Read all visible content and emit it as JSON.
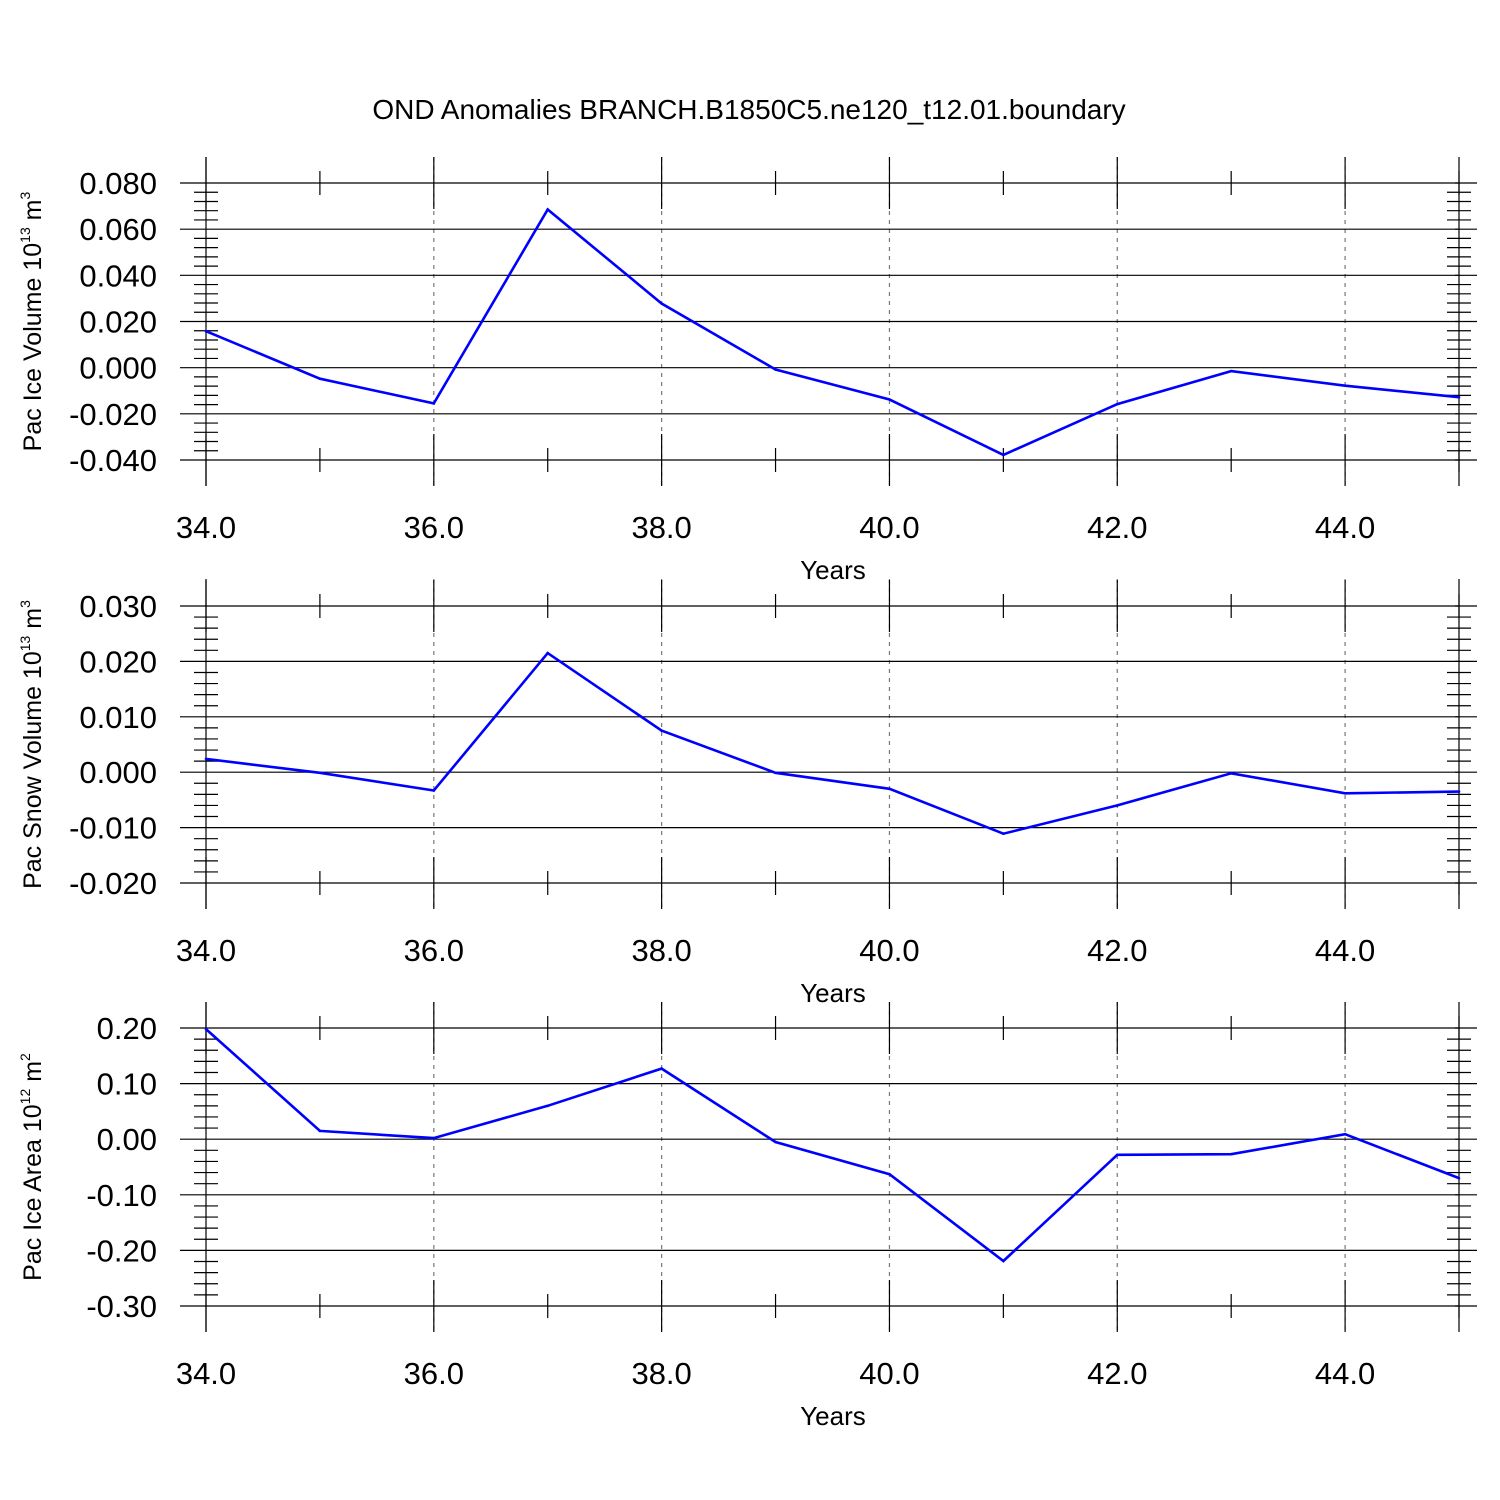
{
  "title": "OND Anomalies BRANCH.B1850C5.ne120_t12.01.boundary",
  "line_color": "#0000ff",
  "chart_data": [
    {
      "type": "line",
      "xlabel": "Years",
      "ylabel": {
        "prefix": "Pac Ice Volume 10",
        "exponent": "13",
        "unit": " m",
        "unit_exponent": "3"
      },
      "xlim": [
        34,
        45
      ],
      "ylim": [
        -0.04,
        0.08
      ],
      "xticks": [
        34,
        36,
        38,
        40,
        42,
        44
      ],
      "xtick_labels": [
        "34.0",
        "36.0",
        "38.0",
        "40.0",
        "42.0",
        "44.0"
      ],
      "yticks": [
        0.08,
        0.06,
        0.04,
        0.02,
        0.0,
        -0.02,
        -0.04
      ],
      "ytick_labels": [
        "0.080",
        "0.060",
        "0.040",
        "0.020",
        "0.000",
        "-0.020",
        "-0.040"
      ],
      "grid": "vertical dashed",
      "x": [
        34,
        35,
        36,
        37,
        38,
        39,
        40,
        41,
        42,
        43,
        44,
        45
      ],
      "values": [
        0.0158,
        -0.0048,
        -0.0155,
        0.0685,
        0.0278,
        -0.0008,
        -0.0138,
        -0.0378,
        -0.0158,
        -0.0015,
        -0.0078,
        -0.0128
      ]
    },
    {
      "type": "line",
      "xlabel": "Years",
      "ylabel": {
        "prefix": "Pac Snow Volume 10",
        "exponent": "13",
        "unit": " m",
        "unit_exponent": "3"
      },
      "xlim": [
        34,
        45
      ],
      "ylim": [
        -0.02,
        0.03
      ],
      "xticks": [
        34,
        36,
        38,
        40,
        42,
        44
      ],
      "xtick_labels": [
        "34.0",
        "36.0",
        "38.0",
        "40.0",
        "42.0",
        "44.0"
      ],
      "yticks": [
        0.03,
        0.02,
        0.01,
        0.0,
        -0.01,
        -0.02
      ],
      "ytick_labels": [
        "0.030",
        "0.020",
        "0.010",
        "0.000",
        "-0.010",
        "-0.020"
      ],
      "grid": "vertical dashed",
      "x": [
        34,
        35,
        36,
        37,
        38,
        39,
        40,
        41,
        42,
        43,
        44,
        45
      ],
      "values": [
        0.0024,
        -0.0001,
        -0.0033,
        0.0215,
        0.0075,
        -0.0001,
        -0.003,
        -0.0111,
        -0.006,
        -0.0002,
        -0.0038,
        -0.0035
      ]
    },
    {
      "type": "line",
      "xlabel": "Years",
      "ylabel": {
        "prefix": "Pac Ice Area 10",
        "exponent": "12",
        "unit": " m",
        "unit_exponent": "2"
      },
      "xlim": [
        34,
        45
      ],
      "ylim": [
        -0.3,
        0.2
      ],
      "xticks": [
        34,
        36,
        38,
        40,
        42,
        44
      ],
      "xtick_labels": [
        "34.0",
        "36.0",
        "38.0",
        "40.0",
        "42.0",
        "44.0"
      ],
      "yticks": [
        0.2,
        0.1,
        0.0,
        -0.1,
        -0.2,
        -0.3
      ],
      "ytick_labels": [
        "0.20",
        "0.10",
        "0.00",
        "-0.10",
        "-0.20",
        "-0.30"
      ],
      "grid": "vertical dashed",
      "x": [
        34,
        35,
        36,
        37,
        38,
        39,
        40,
        41,
        42,
        43,
        44,
        45
      ],
      "values": [
        0.198,
        0.015,
        0.002,
        0.06,
        0.127,
        -0.005,
        -0.063,
        -0.219,
        -0.028,
        -0.027,
        0.009,
        -0.07
      ]
    }
  ]
}
